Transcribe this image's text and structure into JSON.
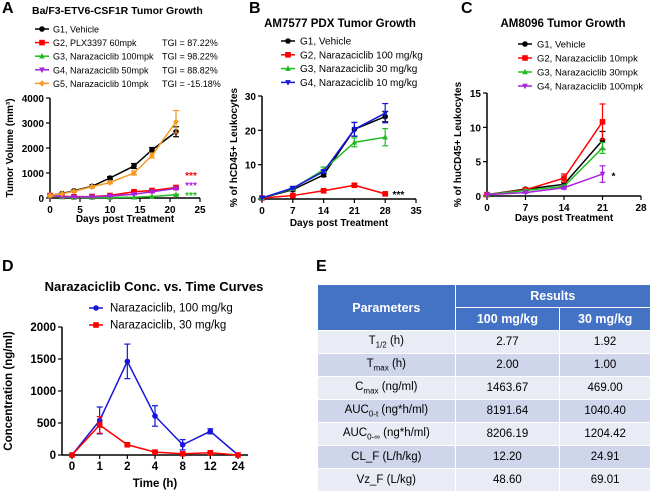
{
  "panels": {
    "a": "A",
    "b": "B",
    "c": "C",
    "d": "D",
    "e": "E"
  },
  "chart_data": [
    {
      "type": "line",
      "title": "Ba/F3-ETV6-CSF1R Tumor Growth",
      "xlabel": "Days post Treatment",
      "ylabel": "Tumor Volume (mm³)",
      "xlim": [
        0,
        25
      ],
      "ylim": [
        0,
        4000
      ],
      "xticks": [
        0,
        5,
        10,
        15,
        20,
        25
      ],
      "yticks": [
        0,
        1000,
        2000,
        3000,
        4000
      ],
      "x": [
        0,
        2,
        4,
        7,
        10,
        14,
        17,
        21
      ],
      "series": [
        {
          "name": "G1, Vehicle",
          "color": "#000000",
          "marker": "circle",
          "values": [
            100,
            180,
            290,
            470,
            800,
            1280,
            1920,
            2650
          ],
          "errors": [
            10,
            20,
            30,
            40,
            60,
            100,
            100,
            200
          ]
        },
        {
          "name": "G2, PLX3397 60mpk",
          "tgi": "TGI = 87.22%",
          "color": "#FF0000",
          "marker": "square",
          "values": [
            100,
            70,
            50,
            60,
            100,
            250,
            300,
            420
          ],
          "errors": [
            10,
            10,
            10,
            10,
            20,
            40,
            40,
            40
          ]
        },
        {
          "name": "G3, Narazaciclib 100mpk",
          "tgi": "TGI = 98.22%",
          "color": "#22BB22",
          "marker": "triangle-up",
          "values": [
            100,
            40,
            20,
            20,
            20,
            30,
            60,
            130
          ],
          "errors": [
            10,
            5,
            5,
            5,
            5,
            5,
            10,
            20
          ]
        },
        {
          "name": "G4, Narazaciclib 50mpk",
          "tgi": "TGI = 88.82%",
          "color": "#AA22DD",
          "marker": "triangle-down",
          "values": [
            100,
            60,
            40,
            50,
            80,
            150,
            250,
            380
          ],
          "errors": [
            10,
            10,
            10,
            10,
            10,
            20,
            30,
            40
          ]
        },
        {
          "name": "G5, Narazaciclib 10mpk",
          "tgi": "TGI = -15.18%",
          "color": "#F59A23",
          "marker": "diamond",
          "values": [
            100,
            170,
            270,
            450,
            620,
            1000,
            1700,
            3050
          ],
          "errors": [
            10,
            20,
            30,
            40,
            50,
            80,
            100,
            450
          ]
        }
      ],
      "annotations": [
        {
          "text": "***",
          "color": "#FF0000",
          "x": 23.5,
          "y": 560
        },
        {
          "text": "***",
          "color": "#AA22DD",
          "x": 23.5,
          "y": 330
        },
        {
          "text": "***",
          "color": "#22BB22",
          "x": 23.5,
          "y": 100
        }
      ],
      "legend": "top-left"
    },
    {
      "type": "line",
      "title": "AM7577 PDX Tumor Growth",
      "xlabel": "Days post Treatment",
      "ylabel": "% of hCD45+ Leukocytes",
      "xlim": [
        0,
        35
      ],
      "ylim": [
        0,
        30
      ],
      "xticks": [
        0,
        7,
        14,
        21,
        28,
        35
      ],
      "yticks": [
        0,
        10,
        20,
        30
      ],
      "x": [
        0,
        7,
        14,
        21,
        28
      ],
      "series": [
        {
          "name": "G1, Vehicle",
          "color": "#000000",
          "marker": "circle",
          "values": [
            0.3,
            2.7,
            7,
            20.3,
            24
          ],
          "errors": [
            0,
            0.3,
            0.5,
            2,
            1.5
          ]
        },
        {
          "name": "G2, Narazaciclib 100 mg/kg",
          "color": "#FF0000",
          "marker": "square",
          "values": [
            0.3,
            1,
            2.4,
            4,
            1.5
          ],
          "errors": [
            0,
            0.2,
            0.3,
            0.4,
            0.3
          ]
        },
        {
          "name": "G3, Narazaciclib 30 mg/kg",
          "color": "#22BB22",
          "marker": "triangle-up",
          "values": [
            0.3,
            3,
            8.5,
            16.5,
            18
          ],
          "errors": [
            0,
            0.3,
            0.8,
            1.3,
            2.5
          ]
        },
        {
          "name": "G4, Narazaciclib 10 mg/kg",
          "color": "#1515DD",
          "marker": "triangle-down",
          "values": [
            0.3,
            3.2,
            8,
            20.3,
            25
          ],
          "errors": [
            0,
            0.3,
            0.5,
            2,
            2.8
          ]
        }
      ],
      "annotations": [
        {
          "text": "***",
          "color": "#000000",
          "x": 31,
          "y": 1.5
        }
      ],
      "legend": "top-left"
    },
    {
      "type": "line",
      "title": "AM8096 Tumor Growth",
      "xlabel": "Days post Treatment",
      "ylabel": "% of huCD45+ Leukocytes",
      "xlim": [
        0,
        28
      ],
      "ylim": [
        0,
        15
      ],
      "xticks": [
        0,
        7,
        14,
        21,
        28
      ],
      "yticks": [
        0,
        5,
        10,
        15
      ],
      "x": [
        0,
        7,
        14,
        21
      ],
      "series": [
        {
          "name": "G1, Vehicle",
          "color": "#000000",
          "marker": "circle",
          "values": [
            0.2,
            1,
            1.7,
            8.1
          ],
          "errors": [
            0,
            0.1,
            0.3,
            1.3
          ]
        },
        {
          "name": "G2, Narazaciclib 10mpk",
          "color": "#FF0000",
          "marker": "square",
          "values": [
            0.2,
            0.9,
            2.6,
            10.8
          ],
          "errors": [
            0,
            0.1,
            0.6,
            2.6
          ]
        },
        {
          "name": "G3, Narazaciclib 30mpk",
          "color": "#22BB22",
          "marker": "triangle-up",
          "values": [
            0.2,
            0.8,
            1.4,
            7
          ],
          "errors": [
            0,
            0.1,
            0.2,
            0.8
          ]
        },
        {
          "name": "G4, Narazaciclib 100mpk",
          "color": "#AA22DD",
          "marker": "triangle-down",
          "values": [
            0.2,
            0.5,
            1.2,
            3.2
          ],
          "errors": [
            0,
            0.1,
            0.2,
            1.2
          ]
        }
      ],
      "annotations": [
        {
          "text": "*",
          "color": "#000000",
          "x": 23,
          "y": 3
        }
      ],
      "legend": "top-right"
    },
    {
      "type": "line",
      "title": "Narazaciclib Conc. vs. Time Curves",
      "xlabel": "Time (h)",
      "ylabel": "Concentration (ng/ml)",
      "ylim": [
        0,
        2000
      ],
      "categories": [
        "0",
        "1",
        "2",
        "4",
        "8",
        "12",
        "24"
      ],
      "yticks": [
        0,
        500,
        1000,
        1500,
        2000
      ],
      "series": [
        {
          "name": "Narazaciclib, 100 mg/kg",
          "color": "#1515DD",
          "marker": "circle",
          "values": [
            0,
            540,
            1463,
            610,
            160,
            370,
            0
          ],
          "errors": [
            0,
            210,
            270,
            160,
            80,
            40,
            0
          ]
        },
        {
          "name": "Narazaciclib, 30 mg/kg",
          "color": "#FF0000",
          "marker": "square",
          "values": [
            0,
            469,
            160,
            45,
            20,
            35,
            0
          ],
          "errors": [
            0,
            130,
            15,
            10,
            5,
            5,
            0
          ]
        }
      ],
      "legend": "top-center"
    }
  ],
  "table": {
    "header_param": "Parameters",
    "header_results": "Results",
    "col1": "100 mg/kg",
    "col2": "30 mg/kg",
    "rows": [
      {
        "main": "T",
        "sub": "1/2",
        "rest": " (h)",
        "v1": "2.77",
        "v2": "1.92"
      },
      {
        "main": "T",
        "sub": "max",
        "rest": " (h)",
        "v1": "2.00",
        "v2": "1.00"
      },
      {
        "main": "C",
        "sub": "max",
        "rest": " (ng/ml)",
        "v1": "1463.67",
        "v2": "469.00"
      },
      {
        "main": "AUC",
        "sub": "0-t",
        "rest": " (ng*h/ml)",
        "v1": "8191.64",
        "v2": "1040.40"
      },
      {
        "main": "AUC",
        "sub": "0-∞",
        "rest": " (ng*h/ml)",
        "v1": "8206.19",
        "v2": "1204.42"
      },
      {
        "main": "CL_F (L/h/kg)",
        "sub": "",
        "rest": "",
        "v1": "12.20",
        "v2": "24.91"
      },
      {
        "main": "Vz_F (L/kg)",
        "sub": "",
        "rest": "",
        "v1": "48.60",
        "v2": "69.01"
      }
    ]
  }
}
